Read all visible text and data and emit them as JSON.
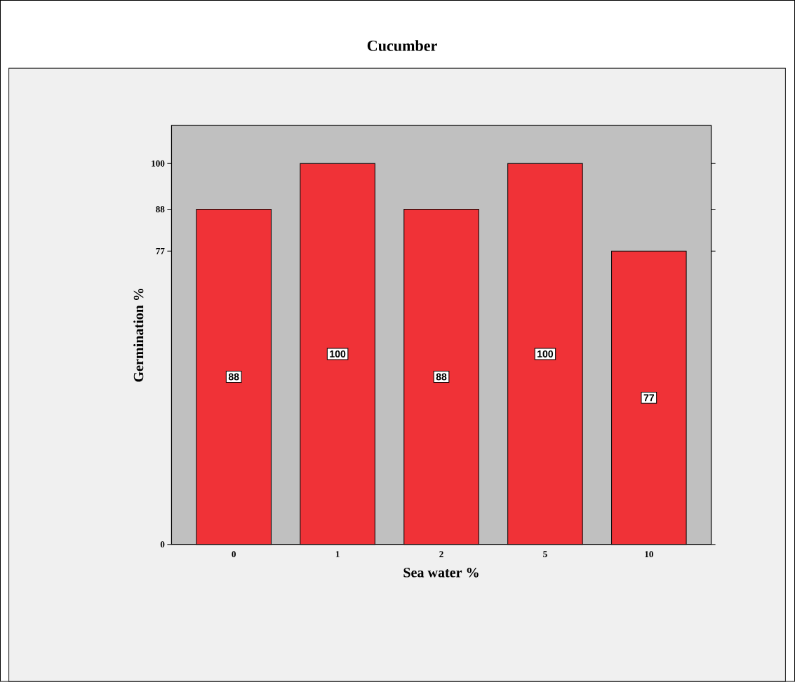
{
  "chart_data": {
    "type": "bar",
    "title": "Cucumber",
    "xlabel": "Sea water %",
    "ylabel": "Germination %",
    "categories": [
      "0",
      "1",
      "2",
      "5",
      "10"
    ],
    "values": [
      88,
      100,
      88,
      100,
      77
    ],
    "color": "#f03237",
    "ylim": [
      0,
      110
    ],
    "yticks": [
      0,
      77,
      88,
      100
    ],
    "data_labels": true
  }
}
